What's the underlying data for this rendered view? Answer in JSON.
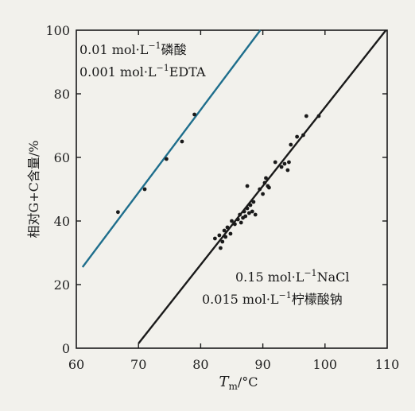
{
  "chart_data": {
    "type": "scatter",
    "xlabel": "T",
    "xlabel_sub": "m",
    "xlabel_unit": "/°C",
    "ylabel": "相对G+C含量/%",
    "xlim": [
      60,
      110
    ],
    "ylim": [
      0,
      100
    ],
    "x_ticks": [
      "60",
      "70",
      "80",
      "90",
      "100",
      "110"
    ],
    "y_ticks": [
      "0",
      "20",
      "40",
      "60",
      "80",
      "100"
    ],
    "grid": false,
    "legend": "none",
    "series": [
      {
        "annotation": [
          "0.01 mol·L⁻¹磷酸",
          "0.001 mol·L⁻¹EDTA"
        ],
        "color": "#1e6e8c",
        "line": {
          "x": [
            61,
            89.6
          ],
          "y": [
            25.5,
            100
          ]
        },
        "points": [
          {
            "x": 66.7,
            "y": 42.8
          },
          {
            "x": 71.0,
            "y": 50.0
          },
          {
            "x": 74.5,
            "y": 59.5
          },
          {
            "x": 77.0,
            "y": 65.0
          },
          {
            "x": 79.0,
            "y": 73.5
          }
        ]
      },
      {
        "annotation": [
          "0.15 mol·L⁻¹NaCl",
          "0.015 mol·L⁻¹柠檬酸钠"
        ],
        "color": "#1a1a1a",
        "line": {
          "x": [
            70,
            109.8
          ],
          "y": [
            1.5,
            100
          ]
        },
        "points": [
          {
            "x": 82.3,
            "y": 34.5
          },
          {
            "x": 83.0,
            "y": 35.5
          },
          {
            "x": 83.2,
            "y": 31.5
          },
          {
            "x": 83.5,
            "y": 33.5
          },
          {
            "x": 83.8,
            "y": 37.0
          },
          {
            "x": 84.0,
            "y": 35.0
          },
          {
            "x": 84.3,
            "y": 38.0
          },
          {
            "x": 84.8,
            "y": 36.0
          },
          {
            "x": 85.0,
            "y": 40.0
          },
          {
            "x": 85.5,
            "y": 39.0
          },
          {
            "x": 86.0,
            "y": 40.5
          },
          {
            "x": 86.3,
            "y": 42.0
          },
          {
            "x": 86.5,
            "y": 39.5
          },
          {
            "x": 86.8,
            "y": 41.0
          },
          {
            "x": 87.0,
            "y": 43.0
          },
          {
            "x": 87.2,
            "y": 41.5
          },
          {
            "x": 87.5,
            "y": 44.0
          },
          {
            "x": 87.8,
            "y": 42.5
          },
          {
            "x": 88.0,
            "y": 45.0
          },
          {
            "x": 88.3,
            "y": 43.0
          },
          {
            "x": 88.5,
            "y": 46.0
          },
          {
            "x": 88.8,
            "y": 42.0
          },
          {
            "x": 87.5,
            "y": 51.0
          },
          {
            "x": 89.5,
            "y": 50.0
          },
          {
            "x": 90.0,
            "y": 48.5
          },
          {
            "x": 90.3,
            "y": 52.0
          },
          {
            "x": 90.5,
            "y": 53.5
          },
          {
            "x": 90.8,
            "y": 51.0
          },
          {
            "x": 91.0,
            "y": 50.5
          },
          {
            "x": 92.0,
            "y": 58.5
          },
          {
            "x": 93.0,
            "y": 57.0
          },
          {
            "x": 93.5,
            "y": 58.0
          },
          {
            "x": 94.0,
            "y": 56.0
          },
          {
            "x": 94.2,
            "y": 58.5
          },
          {
            "x": 94.5,
            "y": 64.0
          },
          {
            "x": 95.5,
            "y": 66.5
          },
          {
            "x": 96.5,
            "y": 67.0
          },
          {
            "x": 97.0,
            "y": 73.0
          },
          {
            "x": 99.0,
            "y": 73.0
          }
        ]
      }
    ]
  }
}
